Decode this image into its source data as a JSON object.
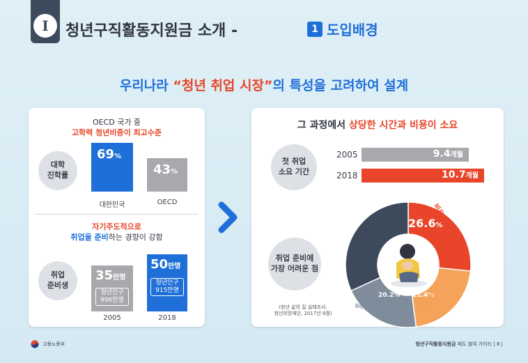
{
  "header": {
    "roman": "I",
    "title": "청년구직활동지원금 소개 -",
    "section_number": "1",
    "section_title": "도입배경"
  },
  "headline": {
    "before": "우리나라 ",
    "highlight": "“청년 취업 시장”",
    "after": "의 특성을 고려하여 설계"
  },
  "left_panel": {
    "top": {
      "caption_line1": "OECD 국가 중",
      "caption_line2": "고학력 청년비중이 최고수준",
      "row_label": "대학\n진학률",
      "bars": [
        {
          "label": "대한민국",
          "value": "69",
          "unit": "%"
        },
        {
          "label": "OECD",
          "value": "43",
          "unit": "%"
        }
      ]
    },
    "bottom": {
      "caption_line1": "자기주도적으로",
      "caption_line2_blue": "취업을 준비",
      "caption_line2_rest": "하는 경향이 강함",
      "row_label": "취업\n준비생",
      "bars": [
        {
          "label": "2005",
          "value": "35",
          "unit": "만명",
          "note": "청년인구\n996만명"
        },
        {
          "label": "2018",
          "value": "50",
          "unit": "만명",
          "note": "청년인구\n915만명"
        }
      ]
    }
  },
  "right_panel": {
    "title_before": "그 과정에서 ",
    "title_highlight": "상당한 시간과 비용이 소요",
    "first_job": {
      "row_label": "첫 취업\n소요 기간",
      "bars": [
        {
          "year": "2005",
          "value": "9.4",
          "unit": "개월"
        },
        {
          "year": "2018",
          "value": "10.7",
          "unit": "개월"
        }
      ]
    },
    "hardest": {
      "row_label": "취업 준비에\n가장 어려운 점",
      "segments": [
        {
          "name": "비용마련의 어려움",
          "value": "26.6",
          "unit": "%",
          "color": "#e8452a"
        },
        {
          "name": "합격의 어려움",
          "value": "21.4",
          "unit": "%",
          "color": "#f5a35a"
        },
        {
          "name": "심리적 스트레스",
          "value": "20.2",
          "unit": "%",
          "color": "#7f8c9c"
        },
        {
          "name": "",
          "value": "",
          "unit": "",
          "color": "#3d4a5c"
        }
      ],
      "source": "(청년 삶의 질 실태조사,\n청년희망재단, 2017년 8월)"
    }
  },
  "footer": {
    "ministry": "고용노동부",
    "doc_title": "청년구직활동지원금",
    "doc_sub": "제도 참여 가이드",
    "page": "8"
  },
  "colors": {
    "accent_blue": "#1f6fd8",
    "accent_red": "#e8452a",
    "grey_bar": "#a7a9ac",
    "dark_navy": "#3d4a5c"
  },
  "icons": {
    "chevron": "chevron-right-icon",
    "person": "sitting-person-icon",
    "logo": "government-logo-icon"
  }
}
